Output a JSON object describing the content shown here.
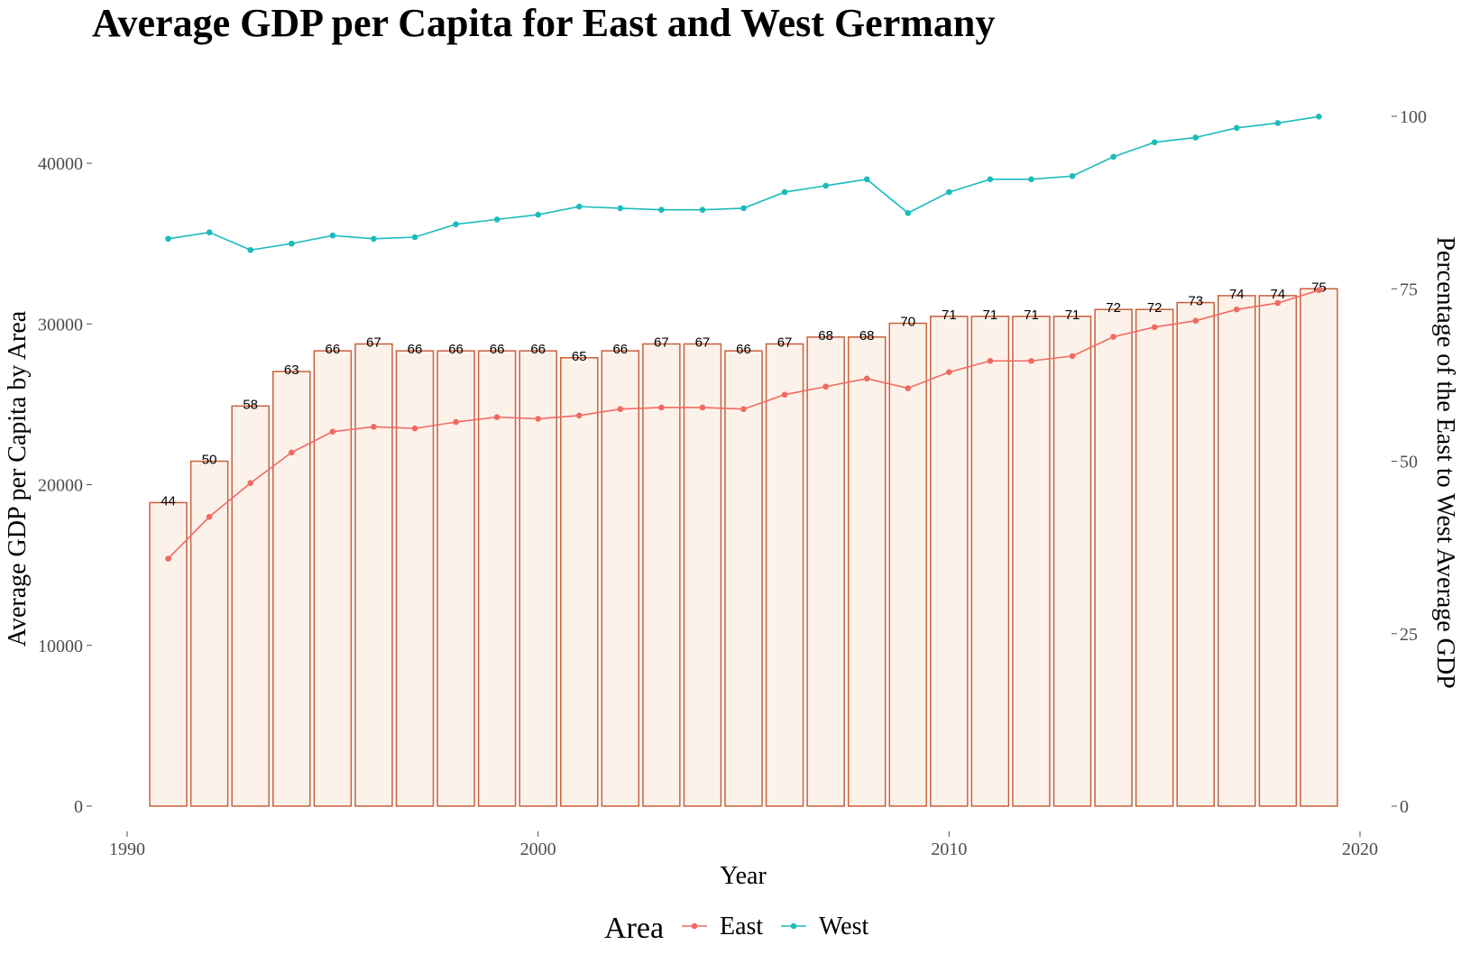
{
  "chart_data": {
    "type": "bar",
    "title": "Average GDP per Capita for East and West Germany",
    "xlabel": "Year",
    "ylabel": "Average GDP per Capita by Area",
    "y2label": "Percentage of the East to West Average GDP",
    "xlim": [
      1990,
      2020
    ],
    "ylim": [
      0,
      45000
    ],
    "y2lim": [
      0,
      100
    ],
    "x_ticks": [
      1990,
      2000,
      2010,
      2020
    ],
    "y_ticks": [
      0,
      10000,
      20000,
      30000,
      40000
    ],
    "y2_ticks": [
      0,
      25,
      50,
      75,
      100
    ],
    "grid": false,
    "legend": {
      "title": "Area",
      "position": "bottom"
    },
    "years": [
      1991,
      1992,
      1993,
      1994,
      1995,
      1996,
      1997,
      1998,
      1999,
      2000,
      2001,
      2002,
      2003,
      2004,
      2005,
      2006,
      2007,
      2008,
      2009,
      2010,
      2011,
      2012,
      2013,
      2014,
      2015,
      2016,
      2017,
      2018,
      2019
    ],
    "bars": {
      "axis": "y2",
      "values": [
        44,
        50,
        58,
        63,
        66,
        67,
        66,
        66,
        66,
        66,
        65,
        66,
        67,
        67,
        66,
        67,
        68,
        68,
        70,
        71,
        71,
        71,
        71,
        72,
        72,
        73,
        74,
        74,
        75
      ],
      "labels": [
        "44",
        "50",
        "58",
        "63",
        "66",
        "67",
        "66",
        "66",
        "66",
        "66",
        "65",
        "66",
        "67",
        "67",
        "66",
        "67",
        "68",
        "68",
        "70",
        "71",
        "71",
        "71",
        "71",
        "72",
        "72",
        "73",
        "74",
        "74",
        "75"
      ],
      "fill": "#fdf2ea",
      "stroke": "#c8603c"
    },
    "series": [
      {
        "name": "East",
        "type": "line",
        "color": "#f06a62",
        "values": [
          15400,
          18000,
          20100,
          22000,
          23300,
          23600,
          23500,
          23900,
          24200,
          24100,
          24300,
          24700,
          24800,
          24800,
          24700,
          25600,
          26100,
          26600,
          26000,
          27000,
          27700,
          27700,
          28000,
          29200,
          29800,
          30200,
          30900,
          31300,
          32100
        ]
      },
      {
        "name": "West",
        "type": "line",
        "color": "#1bbbbb",
        "values": [
          35300,
          35700,
          34600,
          35000,
          35500,
          35300,
          35400,
          36200,
          36500,
          36800,
          37300,
          37200,
          37100,
          37100,
          37200,
          38200,
          38600,
          39000,
          36900,
          38200,
          39000,
          39000,
          39200,
          40400,
          41300,
          41600,
          42200,
          42500,
          42900
        ]
      }
    ]
  }
}
